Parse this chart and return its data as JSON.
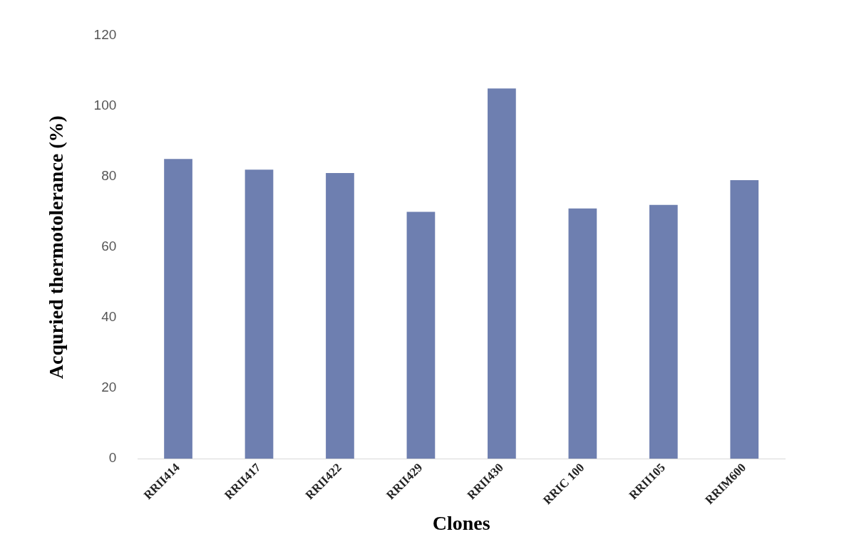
{
  "chart_data": {
    "type": "bar",
    "xlabel": "Clones",
    "ylabel": "Acquried thermotolerance (%)",
    "categories": [
      "RRII414",
      "RRII417",
      "RRII422",
      "RRII429",
      "RRII430",
      "RRIC 100",
      "RRII105",
      "RRIM600"
    ],
    "values": [
      85,
      82,
      81,
      70,
      105,
      71,
      72,
      79
    ],
    "color": "#6e7fb0",
    "ylim": [
      0,
      120
    ],
    "yticks": [
      0,
      20,
      40,
      60,
      80,
      100,
      120
    ],
    "grid": false,
    "legend": false
  }
}
